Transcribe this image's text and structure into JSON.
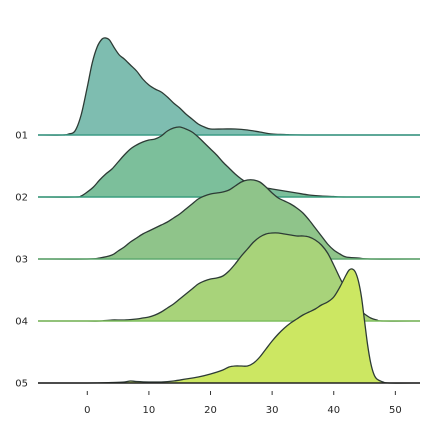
{
  "chart_data": {
    "type": "area",
    "title": "",
    "xlabel": "",
    "ylabel": "",
    "xlim": [
      -8,
      54
    ],
    "xticks": [
      0,
      10,
      20,
      30,
      40,
      50
    ],
    "grid": false,
    "legend": "none",
    "series": [
      {
        "name": "01",
        "color": "#7ebdb0",
        "baseline_color": "#3b9b86",
        "points": [
          [
            -8,
            0
          ],
          [
            -4,
            0
          ],
          [
            -3,
            0.01
          ],
          [
            -2,
            0.04
          ],
          [
            -1,
            0.2
          ],
          [
            0,
            0.48
          ],
          [
            0.8,
            0.72
          ],
          [
            1.6,
            0.88
          ],
          [
            2.4,
            0.96
          ],
          [
            3,
            0.97
          ],
          [
            3.6,
            0.95
          ],
          [
            4.4,
            0.87
          ],
          [
            5.2,
            0.8
          ],
          [
            6,
            0.76
          ],
          [
            7,
            0.7
          ],
          [
            8,
            0.64
          ],
          [
            9,
            0.56
          ],
          [
            10,
            0.5
          ],
          [
            11,
            0.46
          ],
          [
            12,
            0.43
          ],
          [
            13,
            0.38
          ],
          [
            14,
            0.32
          ],
          [
            15,
            0.27
          ],
          [
            16,
            0.21
          ],
          [
            17,
            0.16
          ],
          [
            18,
            0.11
          ],
          [
            19,
            0.08
          ],
          [
            20,
            0.06
          ],
          [
            22,
            0.06
          ],
          [
            24,
            0.06
          ],
          [
            26,
            0.05
          ],
          [
            28,
            0.03
          ],
          [
            30,
            0.01
          ],
          [
            32,
            0.005
          ],
          [
            36,
            0
          ],
          [
            54,
            0
          ]
        ]
      },
      {
        "name": "02",
        "color": "#7cbf9b",
        "baseline_color": "#3a9e7e",
        "points": [
          [
            -8,
            0
          ],
          [
            -2,
            0
          ],
          [
            -1,
            0.01
          ],
          [
            0,
            0.05
          ],
          [
            1,
            0.1
          ],
          [
            2,
            0.17
          ],
          [
            3,
            0.23
          ],
          [
            4,
            0.28
          ],
          [
            5,
            0.35
          ],
          [
            6,
            0.42
          ],
          [
            7,
            0.48
          ],
          [
            8,
            0.52
          ],
          [
            9,
            0.55
          ],
          [
            10,
            0.57
          ],
          [
            11,
            0.58
          ],
          [
            12,
            0.61
          ],
          [
            13,
            0.66
          ],
          [
            14,
            0.69
          ],
          [
            15,
            0.7
          ],
          [
            16,
            0.68
          ],
          [
            17,
            0.65
          ],
          [
            18,
            0.6
          ],
          [
            19,
            0.54
          ],
          [
            20,
            0.48
          ],
          [
            21,
            0.42
          ],
          [
            22,
            0.35
          ],
          [
            23,
            0.29
          ],
          [
            24,
            0.23
          ],
          [
            25,
            0.18
          ],
          [
            26,
            0.14
          ],
          [
            27,
            0.12
          ],
          [
            28,
            0.1
          ],
          [
            30,
            0.08
          ],
          [
            32,
            0.06
          ],
          [
            34,
            0.04
          ],
          [
            36,
            0.02
          ],
          [
            38,
            0.01
          ],
          [
            40,
            0.005
          ],
          [
            42,
            0
          ],
          [
            54,
            0
          ]
        ]
      },
      {
        "name": "03",
        "color": "#8fc48a",
        "baseline_color": "#5fa96e",
        "points": [
          [
            -8,
            0
          ],
          [
            0,
            0
          ],
          [
            2,
            0.01
          ],
          [
            4,
            0.04
          ],
          [
            5,
            0.08
          ],
          [
            6,
            0.12
          ],
          [
            7,
            0.17
          ],
          [
            8,
            0.21
          ],
          [
            9,
            0.25
          ],
          [
            10,
            0.28
          ],
          [
            11,
            0.31
          ],
          [
            12,
            0.34
          ],
          [
            13,
            0.37
          ],
          [
            14,
            0.41
          ],
          [
            15,
            0.45
          ],
          [
            16,
            0.5
          ],
          [
            17,
            0.55
          ],
          [
            18,
            0.6
          ],
          [
            19,
            0.63
          ],
          [
            20,
            0.65
          ],
          [
            21,
            0.66
          ],
          [
            22,
            0.67
          ],
          [
            23,
            0.69
          ],
          [
            24,
            0.73
          ],
          [
            25,
            0.77
          ],
          [
            26,
            0.79
          ],
          [
            27,
            0.79
          ],
          [
            28,
            0.77
          ],
          [
            29,
            0.72
          ],
          [
            30,
            0.66
          ],
          [
            31,
            0.61
          ],
          [
            32,
            0.58
          ],
          [
            33,
            0.55
          ],
          [
            34,
            0.51
          ],
          [
            35,
            0.46
          ],
          [
            36,
            0.39
          ],
          [
            37,
            0.31
          ],
          [
            38,
            0.23
          ],
          [
            39,
            0.15
          ],
          [
            40,
            0.09
          ],
          [
            41,
            0.05
          ],
          [
            42,
            0.02
          ],
          [
            44,
            0.01
          ],
          [
            46,
            0
          ],
          [
            54,
            0
          ]
        ]
      },
      {
        "name": "04",
        "color": "#a8d37a",
        "baseline_color": "#7fbf5f",
        "points": [
          [
            -8,
            0
          ],
          [
            -6,
            0
          ],
          [
            0,
            0
          ],
          [
            2,
            0
          ],
          [
            4,
            0.01
          ],
          [
            6,
            0.01
          ],
          [
            8,
            0.02
          ],
          [
            9,
            0.03
          ],
          [
            10,
            0.04
          ],
          [
            11,
            0.06
          ],
          [
            12,
            0.09
          ],
          [
            13,
            0.13
          ],
          [
            14,
            0.17
          ],
          [
            15,
            0.22
          ],
          [
            16,
            0.27
          ],
          [
            17,
            0.32
          ],
          [
            18,
            0.37
          ],
          [
            19,
            0.4
          ],
          [
            20,
            0.42
          ],
          [
            21,
            0.43
          ],
          [
            22,
            0.45
          ],
          [
            23,
            0.5
          ],
          [
            24,
            0.57
          ],
          [
            25,
            0.65
          ],
          [
            26,
            0.72
          ],
          [
            27,
            0.79
          ],
          [
            28,
            0.84
          ],
          [
            29,
            0.87
          ],
          [
            30,
            0.88
          ],
          [
            31,
            0.88
          ],
          [
            32,
            0.87
          ],
          [
            33,
            0.86
          ],
          [
            34,
            0.85
          ],
          [
            35,
            0.85
          ],
          [
            36,
            0.84
          ],
          [
            37,
            0.81
          ],
          [
            38,
            0.76
          ],
          [
            39,
            0.68
          ],
          [
            40,
            0.56
          ],
          [
            41,
            0.43
          ],
          [
            42,
            0.31
          ],
          [
            43,
            0.2
          ],
          [
            44,
            0.12
          ],
          [
            45,
            0.07
          ],
          [
            46,
            0.03
          ],
          [
            47,
            0.01
          ],
          [
            48,
            0
          ],
          [
            54,
            0
          ]
        ]
      },
      {
        "name": "05",
        "color": "#cce762",
        "baseline_color": "#222222",
        "points": [
          [
            -8,
            0
          ],
          [
            0,
            0
          ],
          [
            4,
            0.005
          ],
          [
            6,
            0.01
          ],
          [
            7,
            0.02
          ],
          [
            8,
            0.015
          ],
          [
            10,
            0.01
          ],
          [
            12,
            0.01
          ],
          [
            14,
            0.02
          ],
          [
            16,
            0.04
          ],
          [
            18,
            0.06
          ],
          [
            20,
            0.09
          ],
          [
            22,
            0.13
          ],
          [
            23,
            0.16
          ],
          [
            24,
            0.17
          ],
          [
            25,
            0.17
          ],
          [
            26,
            0.17
          ],
          [
            27,
            0.2
          ],
          [
            28,
            0.26
          ],
          [
            29,
            0.34
          ],
          [
            30,
            0.42
          ],
          [
            31,
            0.49
          ],
          [
            32,
            0.55
          ],
          [
            33,
            0.6
          ],
          [
            34,
            0.64
          ],
          [
            35,
            0.68
          ],
          [
            36,
            0.71
          ],
          [
            37,
            0.74
          ],
          [
            38,
            0.78
          ],
          [
            39,
            0.81
          ],
          [
            40,
            0.86
          ],
          [
            41,
            0.96
          ],
          [
            42,
            1.08
          ],
          [
            42.5,
            1.13
          ],
          [
            43,
            1.14
          ],
          [
            43.5,
            1.11
          ],
          [
            44,
            1.02
          ],
          [
            44.5,
            0.86
          ],
          [
            45,
            0.62
          ],
          [
            45.5,
            0.38
          ],
          [
            46,
            0.2
          ],
          [
            46.5,
            0.09
          ],
          [
            47,
            0.04
          ],
          [
            48,
            0.01
          ],
          [
            49,
            0
          ],
          [
            54,
            0
          ]
        ]
      }
    ]
  }
}
